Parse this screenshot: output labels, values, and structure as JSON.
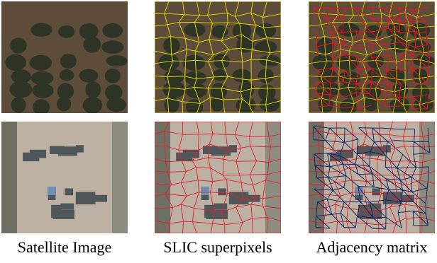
{
  "figure": {
    "captions": [
      "Satellite Image",
      "SLIC superpixels",
      "Adjacency matrix"
    ]
  }
}
